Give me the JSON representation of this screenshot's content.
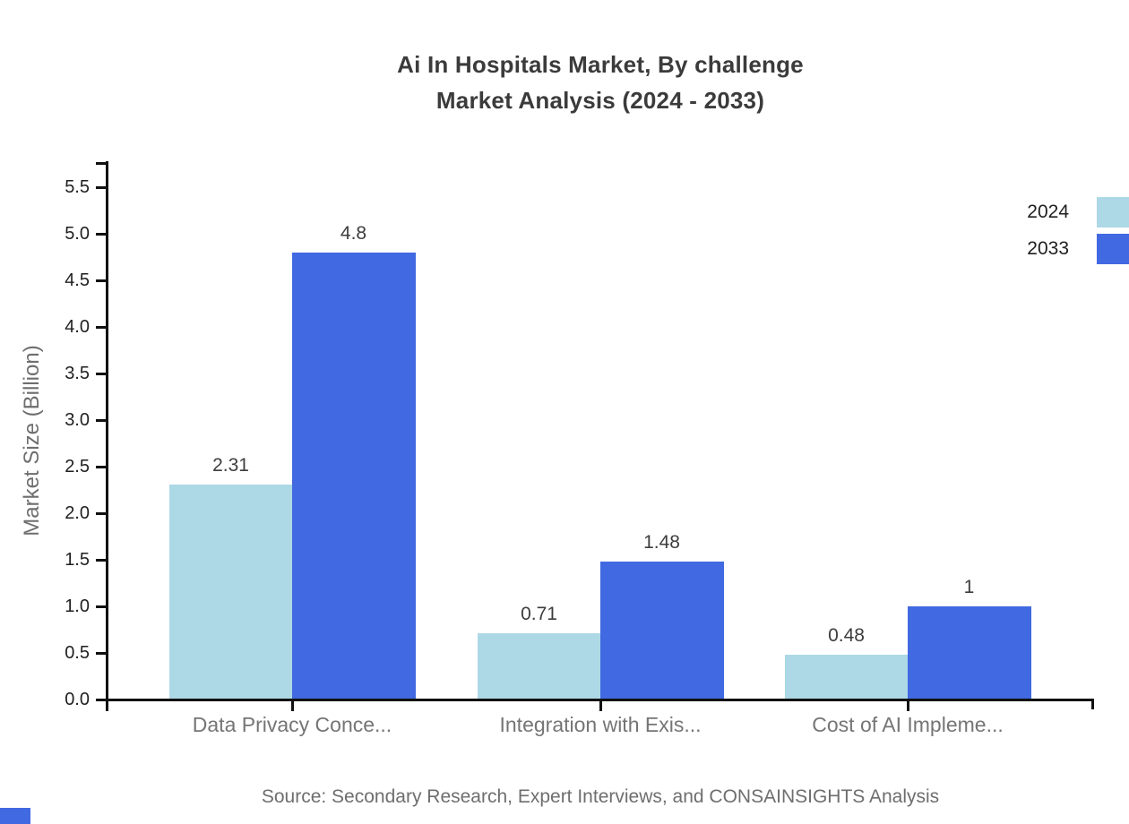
{
  "title": {
    "line1": "Ai In Hospitals Market, By challenge",
    "line2": "Market Analysis (2024 - 2033)"
  },
  "source": "Source: Secondary Research, Expert Interviews, and CONSAINSIGHTS Analysis",
  "chart_data": {
    "type": "bar",
    "title": "Ai In Hospitals Market, By challenge — Market Analysis (2024 - 2033)",
    "categories": [
      "Data Privacy Conce...",
      "Integration with Exis...",
      "Cost of AI Impleme..."
    ],
    "series": [
      {
        "name": "2024",
        "color": "#ADD8E6",
        "values": [
          2.31,
          0.71,
          0.48
        ],
        "labels": [
          "2.31",
          "0.71",
          "0.48"
        ]
      },
      {
        "name": "2033",
        "color": "#4169E1",
        "values": [
          4.8,
          1.48,
          1
        ],
        "labels": [
          "4.8",
          "1.48",
          "1"
        ]
      }
    ],
    "xlabel": "",
    "ylabel": "Market Size (Billion)",
    "ylim": [
      0,
      5.75
    ],
    "ytick_step": 0.5,
    "ytick_labels": [
      "0.0",
      "0.5",
      "1.0",
      "1.5",
      "2.0",
      "2.5",
      "3.0",
      "3.5",
      "4.0",
      "4.5",
      "5.0",
      "5.5"
    ],
    "grid": false,
    "legend_position": "top-right",
    "value_labels_shown": true
  },
  "colors": {
    "axis": "#111111",
    "ytick_label": "#1f1f1f",
    "category_label": "#757575",
    "value_label": "#3d3d3d",
    "title": "#3b3b3b",
    "source": "#6e6e6e"
  },
  "branding": {
    "corner_square_color": "#4169E1"
  }
}
